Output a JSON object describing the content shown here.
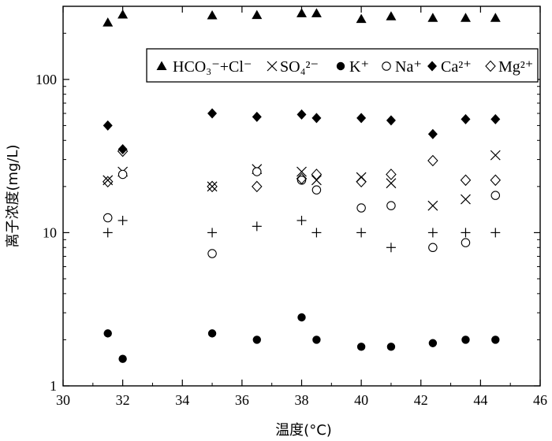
{
  "chart_data": {
    "type": "scatter",
    "xlabel": "温度(°C)",
    "ylabel": "离子浓度(mg/L)",
    "x_ticks": [
      "30",
      "32",
      "34",
      "36",
      "38",
      "40",
      "42",
      "44",
      "46"
    ],
    "y_ticks": [
      "1",
      "10",
      "100"
    ],
    "xlim": [
      30,
      46
    ],
    "ylim": [
      1,
      300
    ],
    "y_scale": "log",
    "grid": false,
    "legend_position": "top-right",
    "series": [
      {
        "name": "HCO₃⁻+Cl⁻",
        "marker": "triangle-filled",
        "x": [
          31.5,
          32,
          35,
          36.5,
          38,
          38.5,
          40,
          41,
          42.4,
          43.5,
          44.5
        ],
        "y": [
          235,
          265,
          262,
          263,
          270,
          270,
          248,
          258,
          252,
          252,
          252
        ]
      },
      {
        "name": "SO₄²⁻",
        "marker": "cross",
        "x": [
          31.5,
          32,
          35,
          36.5,
          38,
          38.5,
          40,
          41,
          42.4,
          43.5,
          44.5
        ],
        "y": [
          22,
          25,
          20,
          26,
          25,
          22,
          23,
          21,
          15,
          16.5,
          32
        ]
      },
      {
        "name": "K⁺",
        "marker": "circle-filled",
        "x": [
          31.5,
          32,
          35,
          36.5,
          38,
          38.5,
          40,
          41,
          42.4,
          43.5,
          44.5
        ],
        "y": [
          2.2,
          1.5,
          2.2,
          2.0,
          2.8,
          2.0,
          1.8,
          1.8,
          1.9,
          2.0,
          2.0
        ]
      },
      {
        "name": "Na⁺",
        "marker": "circle-open",
        "x": [
          31.5,
          32,
          35,
          36.5,
          38,
          38.5,
          40,
          41,
          42.4,
          43.5,
          44.5
        ],
        "y": [
          12.5,
          24,
          7.3,
          25,
          22,
          19,
          14.5,
          15,
          8,
          8.6,
          17.5
        ]
      },
      {
        "name": "Ca²⁺",
        "marker": "diamond-filled",
        "x": [
          31.5,
          32,
          35,
          36.5,
          38,
          38.5,
          40,
          41,
          42.4,
          43.5,
          44.5
        ],
        "y": [
          50,
          35,
          60,
          57,
          59,
          56,
          56,
          54,
          44,
          55,
          55
        ]
      },
      {
        "name": "Mg²⁺",
        "marker": "diamond-open",
        "x": [
          31.5,
          32,
          35,
          36.5,
          38,
          38.5,
          40,
          41,
          42.4,
          43.5,
          44.5
        ],
        "y": [
          21.5,
          34,
          20,
          20,
          22.5,
          24,
          21.5,
          24,
          29.5,
          22,
          22
        ]
      },
      {
        "name": "",
        "marker": "plus",
        "x": [
          31.5,
          32,
          35,
          36.5,
          38,
          38.5,
          40,
          41,
          42.4,
          43.5,
          44.5
        ],
        "y": [
          10,
          12,
          10,
          11,
          12,
          10,
          10,
          8,
          10,
          10,
          10
        ]
      }
    ],
    "colors": {
      "marks": "#000000",
      "background": "#ffffff"
    }
  }
}
